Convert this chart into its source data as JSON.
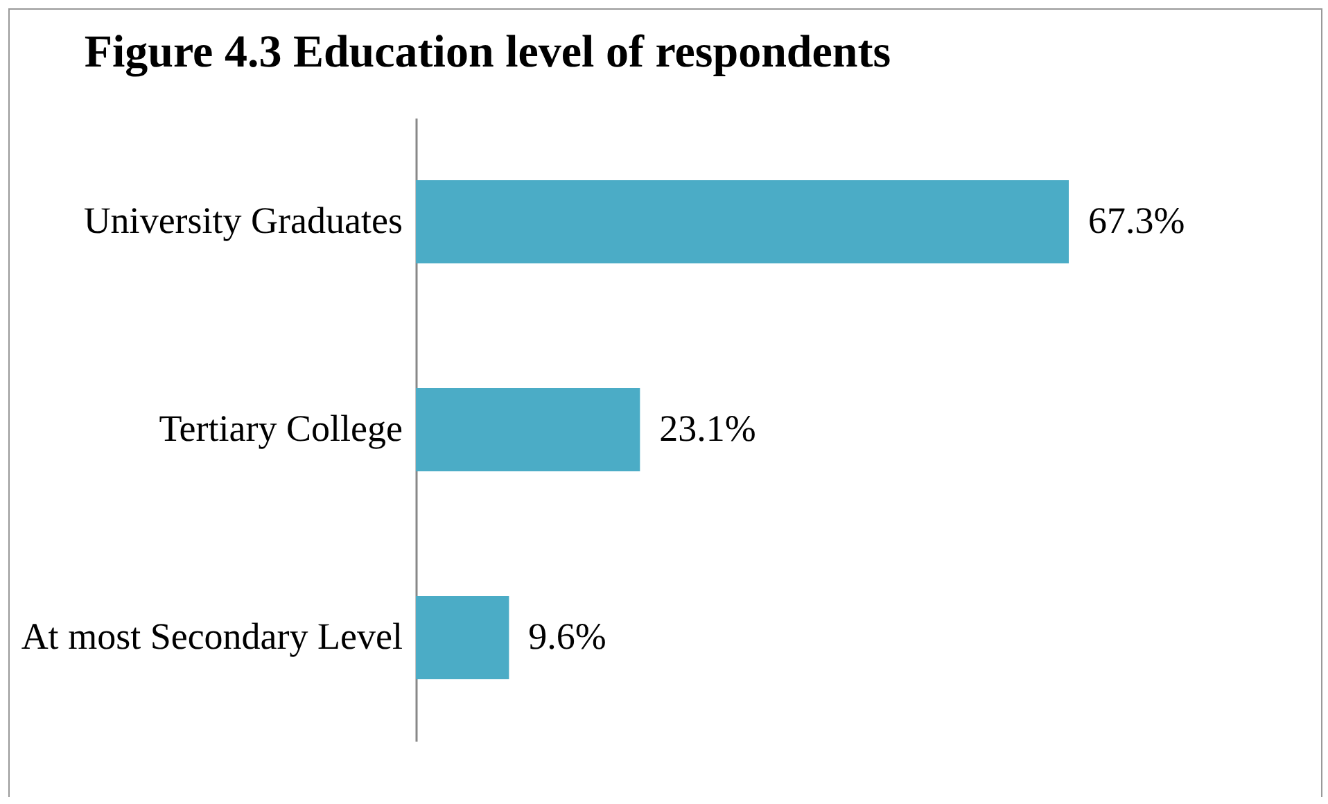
{
  "chart_data": {
    "type": "bar",
    "orientation": "horizontal",
    "title": "Figure 4.3 Education level of respondents",
    "categories": [
      "University Graduates",
      "Tertiary College",
      "At most Secondary Level"
    ],
    "values": [
      67.3,
      23.1,
      9.6
    ],
    "value_labels": [
      "67.3%",
      "23.1%",
      "9.6%"
    ],
    "color": "#4bacc6"
  }
}
